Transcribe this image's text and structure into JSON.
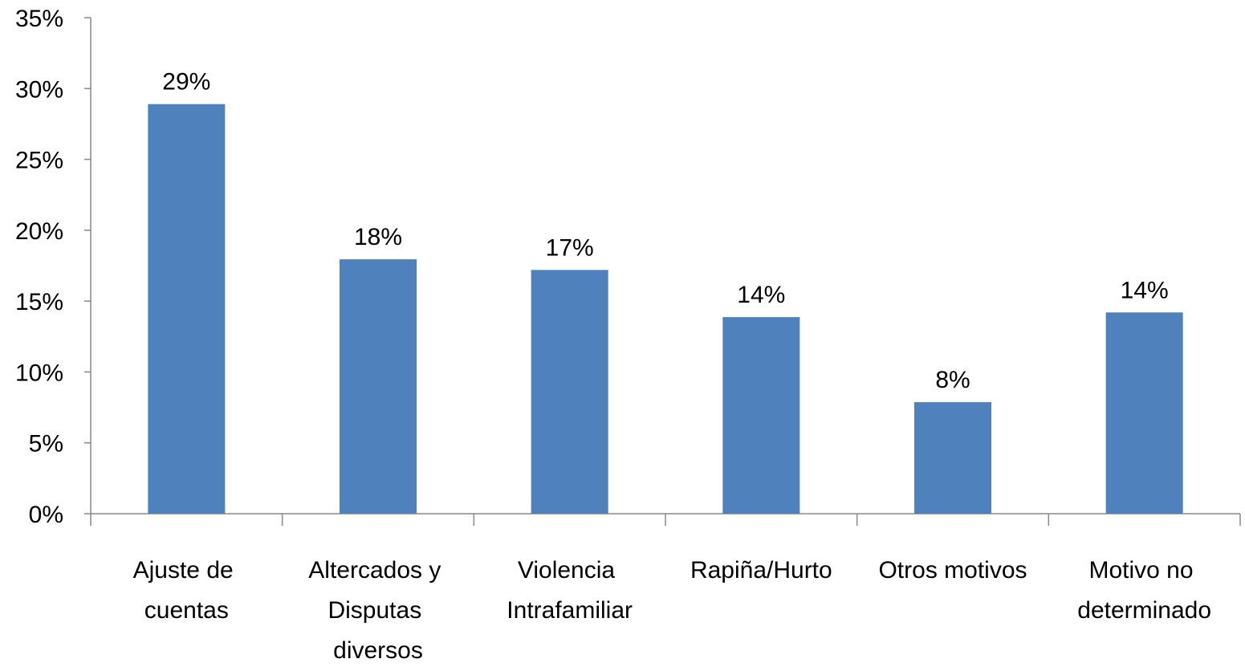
{
  "chart_data": {
    "type": "bar",
    "categories": [
      "Ajuste de cuentas",
      "Altercados y Disputas diversos",
      "Violencia Intrafamiliar",
      "Rapiña/Hurto",
      "Otros motivos",
      "Motivo no determinado"
    ],
    "values": [
      28.9,
      17.95,
      17.2,
      13.87,
      7.87,
      14.2
    ],
    "value_labels": [
      "29%",
      "18%",
      "17%",
      "14%",
      "8%",
      "14%"
    ],
    "color": "#4f81bd",
    "ylim": [
      0,
      35
    ],
    "yticks": [
      {
        "value": 0,
        "label": "0%"
      },
      {
        "value": 5,
        "label": "5%"
      },
      {
        "value": 10,
        "label": "10%"
      },
      {
        "value": 15,
        "label": "15%"
      },
      {
        "value": 20,
        "label": "20%"
      },
      {
        "value": 25,
        "label": "25%"
      },
      {
        "value": 30,
        "label": "30%"
      },
      {
        "value": 35,
        "label": "35%"
      }
    ],
    "grid": false
  }
}
